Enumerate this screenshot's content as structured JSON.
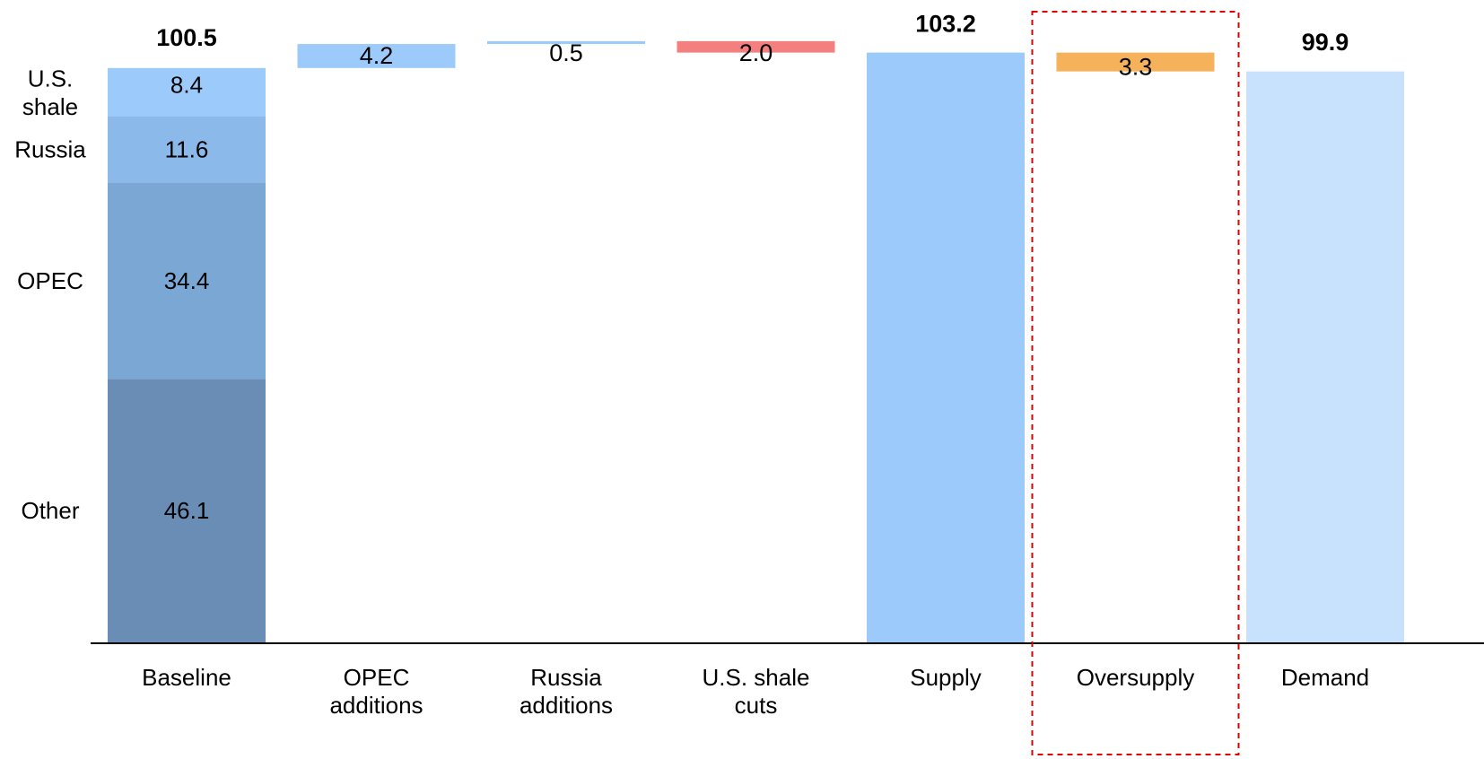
{
  "chart_data": {
    "type": "bar",
    "subtype": "waterfall",
    "categories": [
      "Baseline",
      "OPEC\nadditions",
      "Russia\nadditions",
      "U.S. shale\ncuts",
      "Supply",
      "Oversupply",
      "Demand"
    ],
    "baseline_stack": [
      {
        "name": "Other",
        "value": 46.1,
        "color": "#6a8db5"
      },
      {
        "name": "OPEC",
        "value": 34.4,
        "color": "#7ba7d4"
      },
      {
        "name": "Russia",
        "value": 11.6,
        "color": "#8bb9ea"
      },
      {
        "name": "U.S.\nshale",
        "value": 8.4,
        "color": "#9ccbfb"
      }
    ],
    "baseline_total": "100.5",
    "changes": [
      {
        "category_index": 1,
        "value": 4.2,
        "label": "4.2",
        "direction": "up",
        "color": "#9ccbfb"
      },
      {
        "category_index": 2,
        "value": 0.5,
        "label": "0.5",
        "direction": "up",
        "color": "#9ccbfb"
      },
      {
        "category_index": 3,
        "value": 2.0,
        "label": "2.0",
        "direction": "down",
        "color": "#f47f7f"
      }
    ],
    "supply": {
      "value": 103.2,
      "label": "103.2",
      "color": "#9ccbfb"
    },
    "oversupply": {
      "value": 3.3,
      "label": "3.3",
      "color": "#f5b25b",
      "highlight_color": "#e00000"
    },
    "demand": {
      "value": 99.9,
      "label": "99.9",
      "color": "#c8e1fc"
    },
    "ylim": [
      0,
      107
    ],
    "grid": false,
    "legend": "none"
  }
}
